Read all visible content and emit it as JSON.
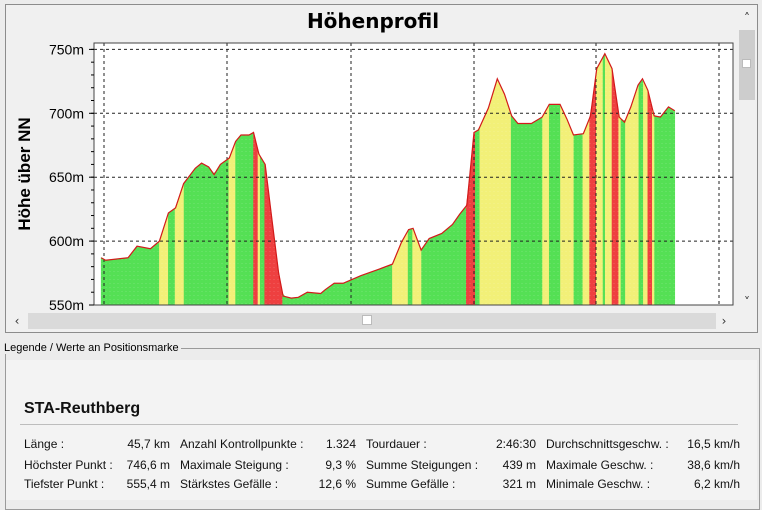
{
  "chart_data": {
    "type": "area",
    "title": "Höhenprofil",
    "ylabel": "Höhe über NN",
    "xlabel": "",
    "ylim": [
      550,
      755
    ],
    "yticks": [
      "750m",
      "700m",
      "650m",
      "600m",
      "550m"
    ],
    "grid": true,
    "colors": {
      "line": "#d21a1a",
      "flat": "#55e055",
      "moderate": "#f2f078",
      "steep": "#ee4040",
      "background": "#ffffff"
    },
    "series": [
      {
        "values": [
          {
            "x": 0,
            "y": 587
          },
          {
            "x": 0.5,
            "y": 585
          },
          {
            "x": 3,
            "y": 587
          },
          {
            "x": 4,
            "y": 596
          },
          {
            "x": 5.5,
            "y": 594
          },
          {
            "x": 6.5,
            "y": 600
          },
          {
            "x": 7.5,
            "y": 622
          },
          {
            "x": 8.3,
            "y": 626
          },
          {
            "x": 9.2,
            "y": 645
          },
          {
            "x": 10.5,
            "y": 657
          },
          {
            "x": 11.2,
            "y": 661
          },
          {
            "x": 12,
            "y": 658
          },
          {
            "x": 12.6,
            "y": 652
          },
          {
            "x": 13.3,
            "y": 660
          },
          {
            "x": 14.3,
            "y": 665
          },
          {
            "x": 15,
            "y": 678
          },
          {
            "x": 15.6,
            "y": 683
          },
          {
            "x": 16.5,
            "y": 683
          },
          {
            "x": 17,
            "y": 685
          },
          {
            "x": 17.6,
            "y": 668
          },
          {
            "x": 18.3,
            "y": 660
          },
          {
            "x": 19,
            "y": 620
          },
          {
            "x": 19.8,
            "y": 575
          },
          {
            "x": 20.3,
            "y": 557
          },
          {
            "x": 21.2,
            "y": 555.4
          },
          {
            "x": 22,
            "y": 556
          },
          {
            "x": 23,
            "y": 560
          },
          {
            "x": 24.5,
            "y": 559
          },
          {
            "x": 25,
            "y": 562
          },
          {
            "x": 26,
            "y": 567
          },
          {
            "x": 27,
            "y": 567
          },
          {
            "x": 29,
            "y": 573
          },
          {
            "x": 31,
            "y": 578
          },
          {
            "x": 32.5,
            "y": 582
          },
          {
            "x": 33.5,
            "y": 599
          },
          {
            "x": 34.3,
            "y": 609
          },
          {
            "x": 34.8,
            "y": 610
          },
          {
            "x": 35.7,
            "y": 593
          },
          {
            "x": 36.6,
            "y": 602
          },
          {
            "x": 38,
            "y": 606
          },
          {
            "x": 39.2,
            "y": 613
          },
          {
            "x": 40,
            "y": 621
          },
          {
            "x": 40.8,
            "y": 628
          },
          {
            "x": 41.6,
            "y": 685
          },
          {
            "x": 42.1,
            "y": 687
          },
          {
            "x": 43.2,
            "y": 704
          },
          {
            "x": 44.2,
            "y": 727
          },
          {
            "x": 45,
            "y": 715
          },
          {
            "x": 45.8,
            "y": 698
          },
          {
            "x": 46.5,
            "y": 692
          },
          {
            "x": 48,
            "y": 692
          },
          {
            "x": 49.2,
            "y": 697
          },
          {
            "x": 50,
            "y": 707
          },
          {
            "x": 51.2,
            "y": 707
          },
          {
            "x": 52,
            "y": 695
          },
          {
            "x": 52.7,
            "y": 683
          },
          {
            "x": 53.8,
            "y": 684
          },
          {
            "x": 54.6,
            "y": 698
          },
          {
            "x": 55.3,
            "y": 735
          },
          {
            "x": 56.2,
            "y": 746.6
          },
          {
            "x": 57,
            "y": 735
          },
          {
            "x": 57.8,
            "y": 697
          },
          {
            "x": 58.4,
            "y": 693
          },
          {
            "x": 59.1,
            "y": 705
          },
          {
            "x": 59.9,
            "y": 722
          },
          {
            "x": 60.4,
            "y": 727
          },
          {
            "x": 61,
            "y": 718
          },
          {
            "x": 61.7,
            "y": 698
          },
          {
            "x": 62.4,
            "y": 697
          },
          {
            "x": 63.3,
            "y": 705
          },
          {
            "x": 64,
            "y": 702
          }
        ]
      }
    ]
  },
  "legend": {
    "frame_title": "Legende / Werte an Positionsmarke",
    "route_name": "STA-Reuthberg",
    "rows": [
      [
        {
          "label": "Länge :",
          "value": "45,7 km"
        },
        {
          "label": "Anzahl Kontrollpunkte :",
          "value": "1.324"
        },
        {
          "label": "Tourdauer :",
          "value": "2:46:30"
        },
        {
          "label": "Durchschnittsgeschw. :",
          "value": "16,5 km/h"
        }
      ],
      [
        {
          "label": "Höchster Punkt :",
          "value": "746,6 m"
        },
        {
          "label": "Maximale Steigung :",
          "value": "9,3 %"
        },
        {
          "label": "Summe Steigungen :",
          "value": "439 m"
        },
        {
          "label": "Maximale Geschw. :",
          "value": "38,6 km/h"
        }
      ],
      [
        {
          "label": "Tiefster Punkt :",
          "value": "555,4 m"
        },
        {
          "label": "Stärkstes Gefälle :",
          "value": "12,6 %"
        },
        {
          "label": "Summe Gefälle :",
          "value": "321 m"
        },
        {
          "label": "Minimale Geschw. :",
          "value": "6,2 km/h"
        }
      ]
    ]
  },
  "scroll_icons": {
    "up": "chevron-up-icon",
    "down": "chevron-down-icon",
    "left": "chevron-left-icon",
    "right": "chevron-right-icon"
  }
}
